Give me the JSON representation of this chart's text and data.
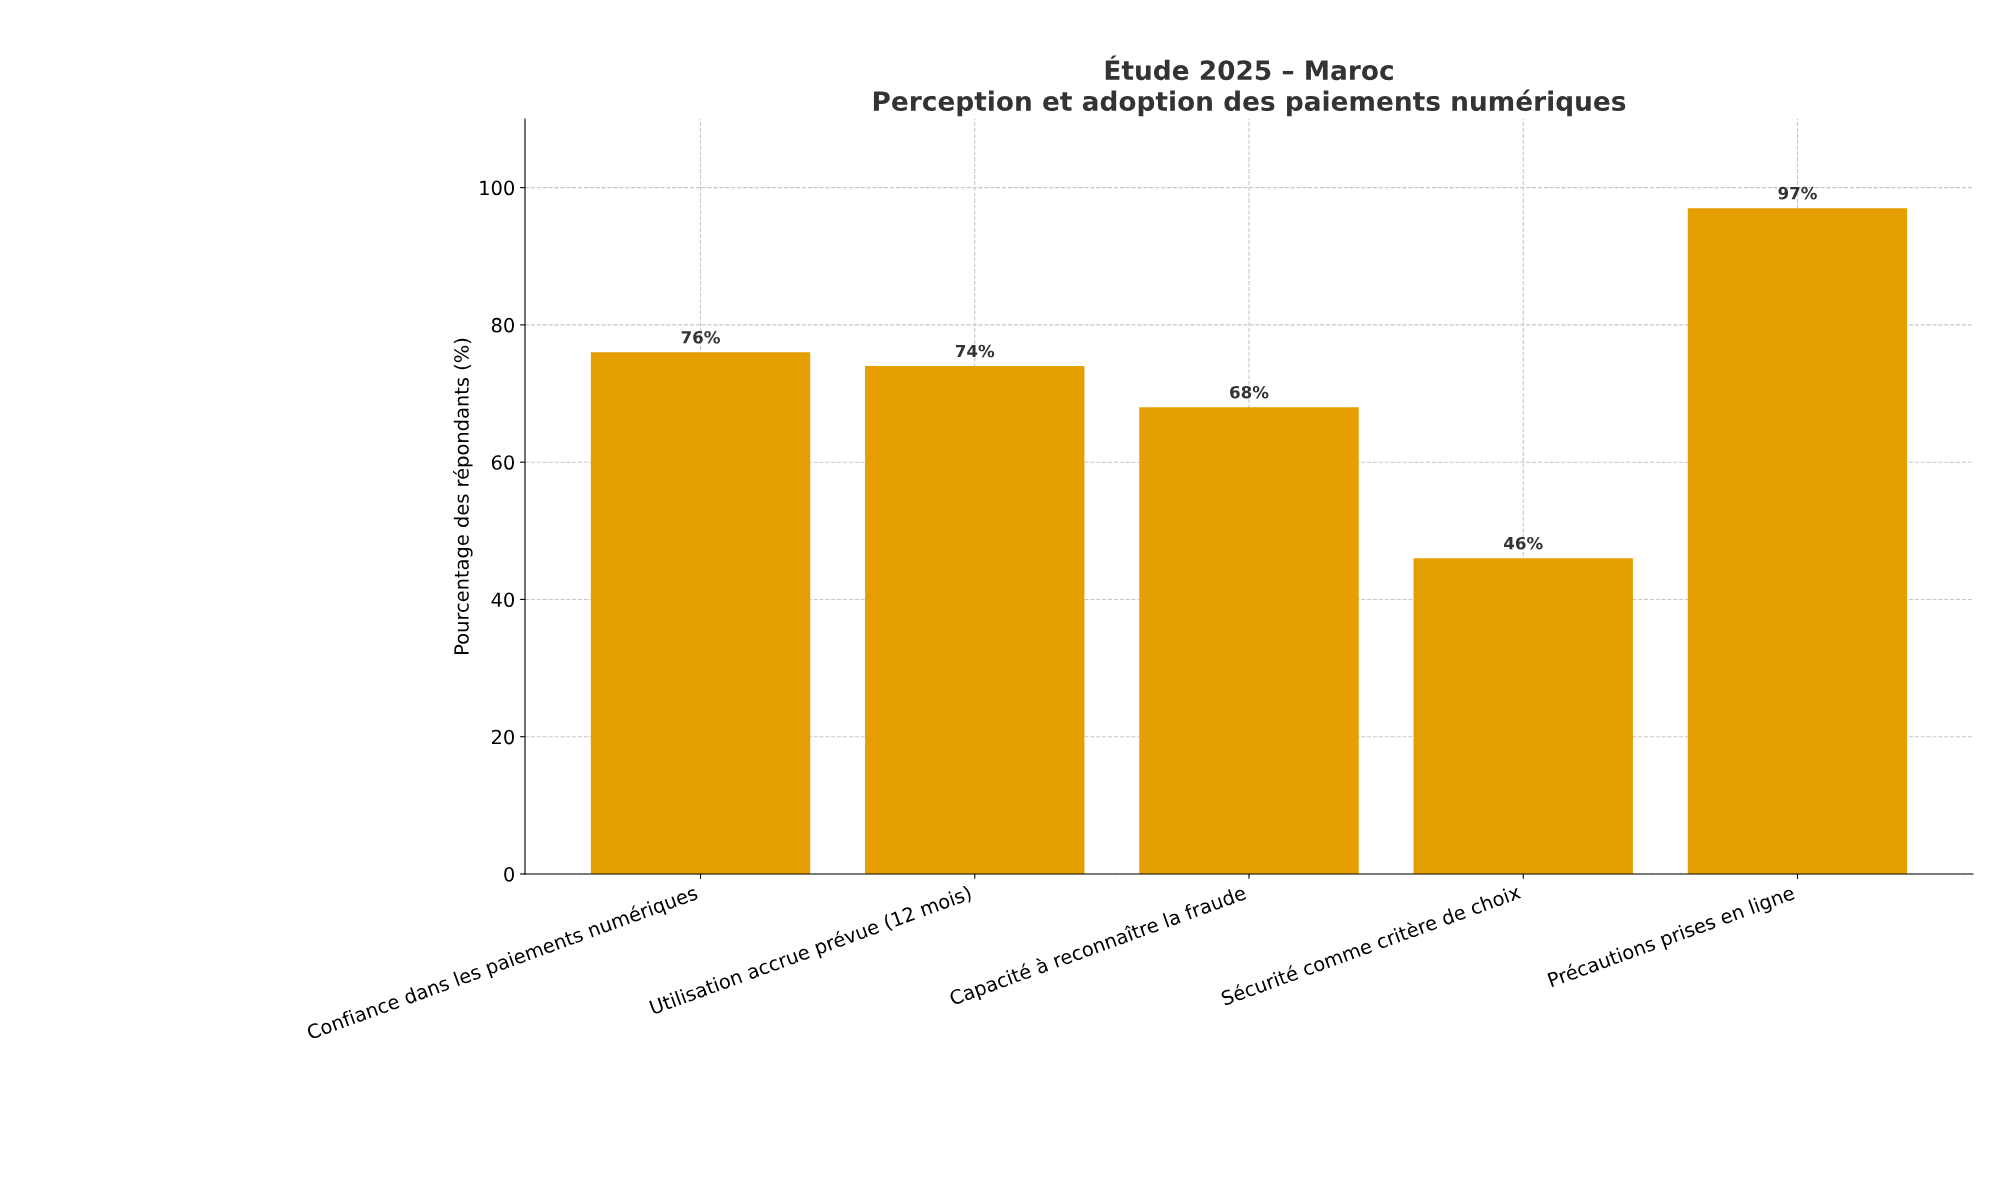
{
  "chart_data": {
    "type": "bar",
    "title": "Étude 2025 – Maroc\nPerception et adoption des paiements numériques",
    "ylabel": "Pourcentage des répondants (%)",
    "categories": [
      "Confiance dans les paiements numériques",
      "Utilisation accrue prévue (12 mois)",
      "Capacité à reconnaître la fraude",
      "Sécurité comme critère de choix",
      "Précautions prises en ligne"
    ],
    "values": [
      76,
      74,
      68,
      46,
      97
    ],
    "value_labels": [
      "76%",
      "74%",
      "68%",
      "46%",
      "97%"
    ],
    "color": "#e69f00",
    "ylim": [
      0,
      110
    ],
    "yticks": [
      0,
      20,
      40,
      60,
      80,
      100
    ],
    "grid": true,
    "legend": false
  }
}
